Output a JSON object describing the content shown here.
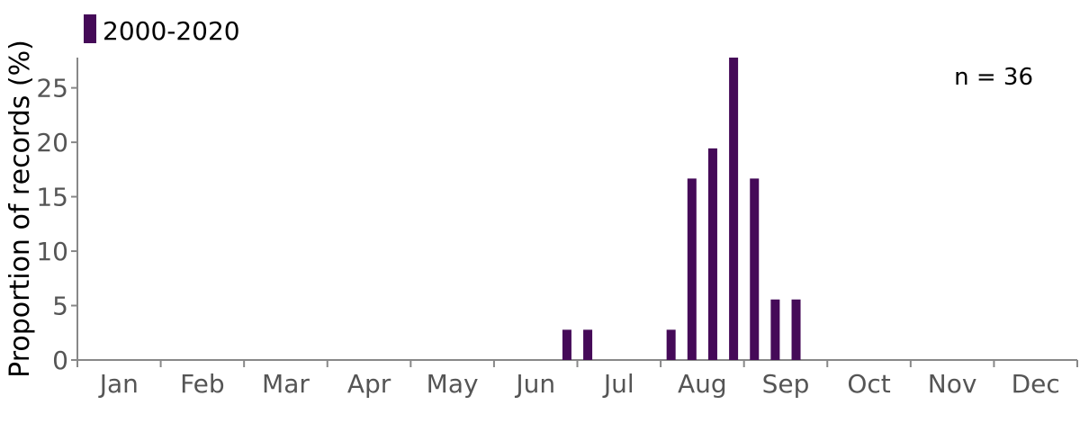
{
  "chart_data": {
    "type": "bar",
    "legend": {
      "label": "2000-2020",
      "placement": "top-left"
    },
    "annotation": "n = 36",
    "ylabel": "Proportion of records (%)",
    "xlabel": "",
    "ylim": [
      0,
      27.78
    ],
    "yticks": [
      0,
      5,
      10,
      15,
      20,
      25
    ],
    "month_labels": [
      "Jan",
      "Feb",
      "Mar",
      "Apr",
      "May",
      "Jun",
      "Jul",
      "Aug",
      "Sep",
      "Oct",
      "Nov",
      "Dec"
    ],
    "bin_unit": "quarter-month (4 per month)",
    "series": [
      {
        "values": [
          0,
          0,
          0,
          0,
          0,
          0,
          0,
          0,
          0,
          0,
          0,
          0,
          0,
          0,
          0,
          0,
          0,
          0,
          0,
          0,
          0,
          0,
          0,
          2.78,
          2.78,
          0,
          0,
          0,
          2.78,
          16.67,
          19.44,
          27.78,
          16.67,
          5.56,
          5.56,
          0,
          0,
          0,
          0,
          0,
          0,
          0,
          0,
          0,
          0,
          0,
          0,
          0
        ]
      }
    ],
    "colors": {
      "bar": "#450a58",
      "axis": "#888888",
      "tick_text": "#555555"
    },
    "grid": false
  }
}
